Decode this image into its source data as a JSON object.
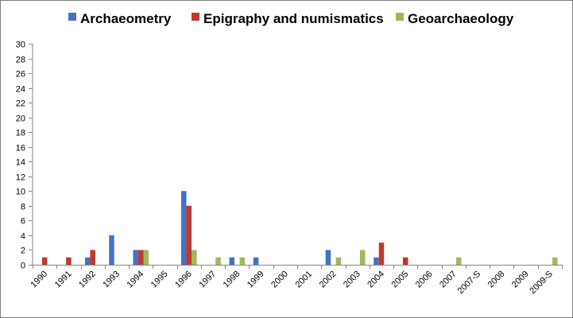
{
  "chart_data": {
    "type": "bar",
    "title": "",
    "xlabel": "",
    "ylabel": "",
    "ylim": [
      0,
      30
    ],
    "yticks": [
      0,
      2,
      4,
      6,
      8,
      10,
      12,
      14,
      16,
      18,
      20,
      22,
      24,
      26,
      28,
      30
    ],
    "grid": false,
    "legend_position": "top",
    "categories": [
      "1990",
      "1991",
      "1992",
      "1993",
      "1994",
      "1995",
      "1996",
      "1997",
      "1998",
      "1999",
      "2000",
      "2001",
      "2002",
      "2003",
      "2004",
      "2005",
      "2006",
      "2007",
      "2007-S",
      "2008",
      "2009",
      "2009-S"
    ],
    "series": [
      {
        "name": "Archaeometry",
        "color": "#4472c4",
        "values": [
          0,
          0,
          1,
          4,
          2,
          0,
          10,
          0,
          1,
          1,
          0,
          0,
          2,
          0,
          1,
          0,
          0,
          0,
          0,
          0,
          0,
          0
        ]
      },
      {
        "name": "Epigraphy and numismatics",
        "color": "#c0392b",
        "values": [
          1,
          1,
          2,
          0,
          2,
          0,
          8,
          0,
          0,
          0,
          0,
          0,
          0,
          0,
          3,
          1,
          0,
          0,
          0,
          0,
          0,
          0
        ]
      },
      {
        "name": "Geoarchaeology",
        "color": "#9bbb59",
        "values": [
          0,
          0,
          0,
          0,
          2,
          0,
          2,
          1,
          1,
          0,
          0,
          0,
          1,
          2,
          0,
          0,
          0,
          1,
          0,
          0,
          0,
          1
        ]
      }
    ]
  }
}
